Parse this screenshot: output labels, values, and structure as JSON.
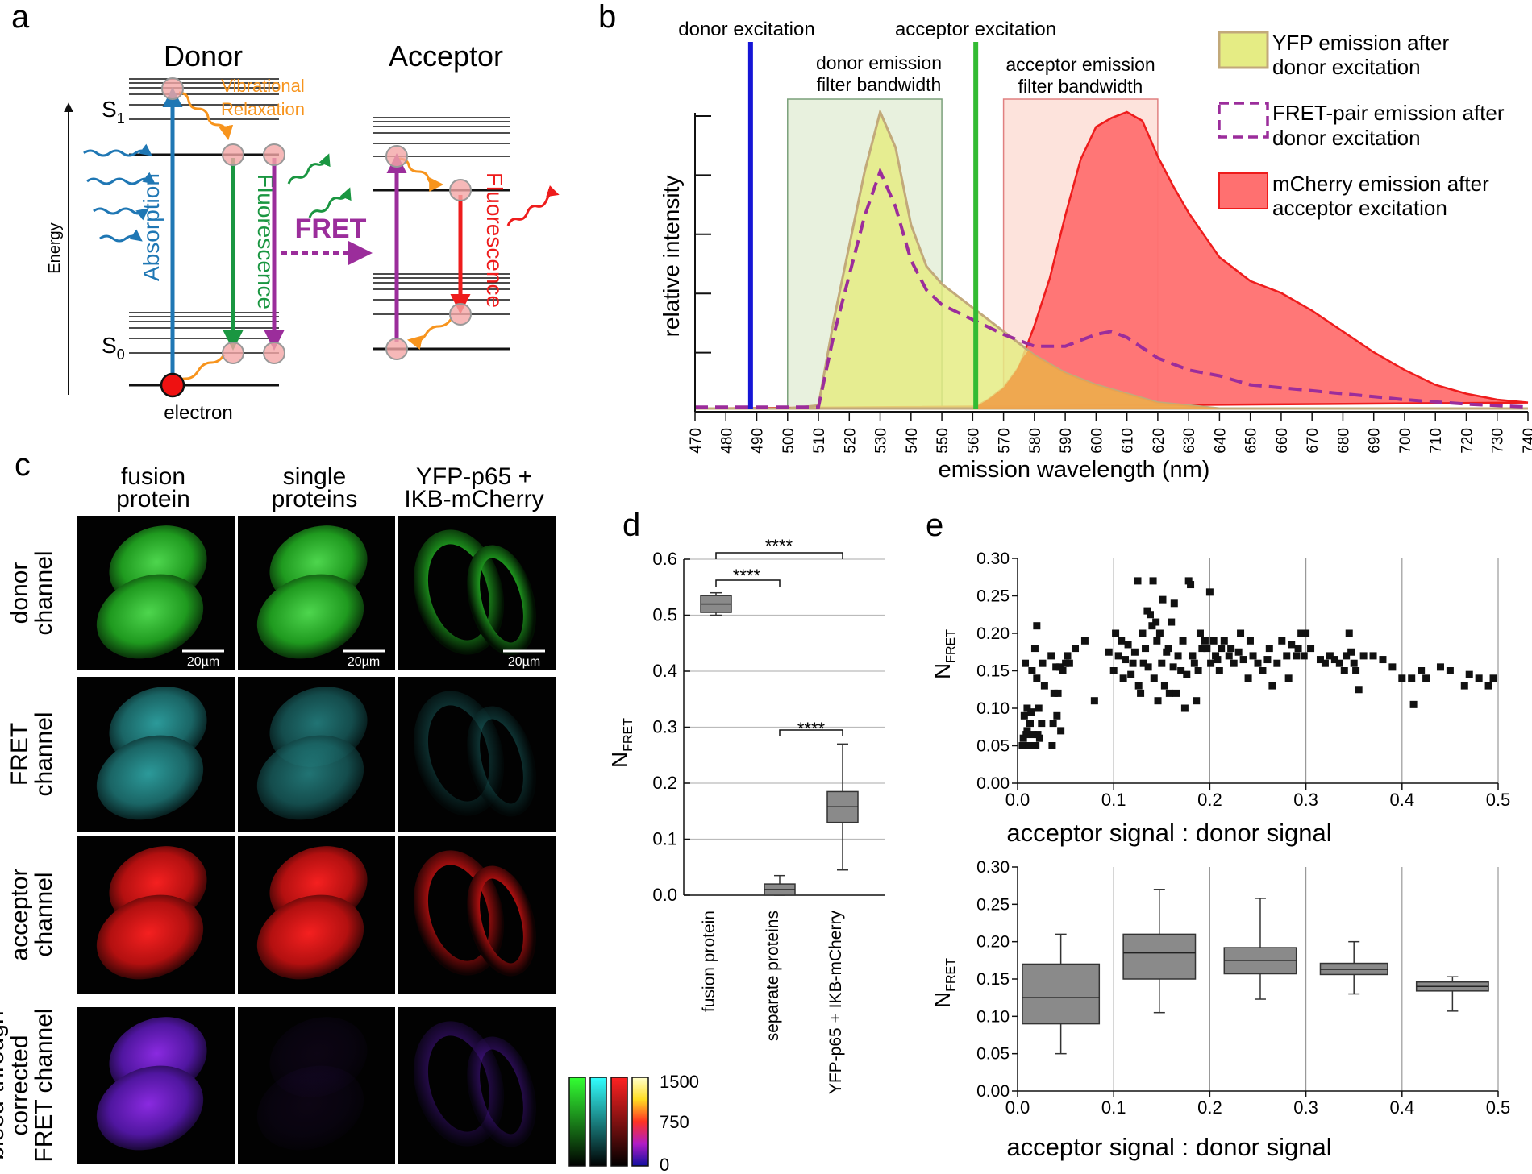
{
  "panel_letters": {
    "a": "a",
    "b": "b",
    "c": "c",
    "d": "d",
    "e": "e"
  },
  "colors": {
    "absorption": "#1f77b4",
    "fluorescence_donor": "#1a9641",
    "fret": "#9b2d9b",
    "fluorescence_acceptor": "#ee1c1c",
    "vibrational": "#f7941d",
    "yfp_fill": "#e5ec84",
    "yfp_line": "#c2a97a",
    "mcherry_fill": "#ff7070",
    "mcherry_line": "#ee1c1c",
    "overlap_fill": "#f0a24a",
    "donor_exc": "#1515d6",
    "acceptor_exc": "#33bb33",
    "donor_box": "#e8f1de",
    "acceptor_box": "#fde3dc",
    "box_gray": "#8a8a8a"
  },
  "panel_a": {
    "donor_title": "Donor",
    "acceptor_title": "Acceptor",
    "energy_label": "Energy",
    "s1_label": "S",
    "s1_sub": "1",
    "s0_label": "S",
    "s0_sub": "0",
    "electron_label": "electron",
    "vibrational_line1": "Vibrational",
    "vibrational_line2": "Relaxation",
    "absorption_label": "Absorption",
    "donor_fluorescence_label": "Fluorescence",
    "acceptor_fluorescence_label": "Fluorescence",
    "fret_label": "FRET"
  },
  "panel_b": {
    "donor_excitation": "donor excitation",
    "acceptor_excitation": "acceptor excitation",
    "donor_filter_line1": "donor emission",
    "donor_filter_line2": "filter bandwidth",
    "acceptor_filter_line1": "acceptor emission",
    "acceptor_filter_line2": "filter bandwidth",
    "legend": [
      {
        "line1": "YFP emission after",
        "line2": "donor excitation"
      },
      {
        "line1": "FRET-pair emission after",
        "line2": "donor excitation"
      },
      {
        "line1": "mCherry emission after",
        "line2": "acceptor excitation"
      }
    ],
    "chart_data": {
      "type": "area",
      "xlabel": "emission wavelength (nm)",
      "ylabel": "relative intensity",
      "xlim": [
        470,
        740
      ],
      "x_ticks": [
        470,
        480,
        490,
        500,
        510,
        520,
        530,
        540,
        550,
        560,
        570,
        580,
        590,
        600,
        610,
        620,
        630,
        640,
        650,
        660,
        670,
        680,
        690,
        700,
        710,
        720,
        730,
        740
      ],
      "donor_excitation_nm": 488,
      "acceptor_excitation_nm": 561,
      "donor_filter_nm": [
        500,
        550
      ],
      "acceptor_filter_nm": [
        570,
        620
      ],
      "series": [
        {
          "name": "YFP emission after donor excitation",
          "points": [
            [
              470,
              0
            ],
            [
              500,
              0
            ],
            [
              510,
              0.01
            ],
            [
              515,
              0.3
            ],
            [
              520,
              0.55
            ],
            [
              525,
              0.8
            ],
            [
              530,
              1.0
            ],
            [
              535,
              0.88
            ],
            [
              540,
              0.62
            ],
            [
              545,
              0.48
            ],
            [
              550,
              0.42
            ],
            [
              555,
              0.38
            ],
            [
              560,
              0.34
            ],
            [
              565,
              0.3
            ],
            [
              570,
              0.26
            ],
            [
              575,
              0.22
            ],
            [
              580,
              0.18
            ],
            [
              590,
              0.12
            ],
            [
              600,
              0.08
            ],
            [
              610,
              0.05
            ],
            [
              620,
              0.02
            ],
            [
              630,
              0.01
            ],
            [
              640,
              0
            ],
            [
              740,
              0
            ]
          ]
        },
        {
          "name": "FRET-pair emission after donor excitation",
          "points": [
            [
              470,
              0.005
            ],
            [
              510,
              0.005
            ],
            [
              515,
              0.25
            ],
            [
              520,
              0.45
            ],
            [
              525,
              0.65
            ],
            [
              530,
              0.8
            ],
            [
              535,
              0.68
            ],
            [
              540,
              0.5
            ],
            [
              545,
              0.4
            ],
            [
              550,
              0.35
            ],
            [
              560,
              0.3
            ],
            [
              570,
              0.25
            ],
            [
              580,
              0.21
            ],
            [
              590,
              0.21
            ],
            [
              600,
              0.25
            ],
            [
              605,
              0.26
            ],
            [
              610,
              0.24
            ],
            [
              620,
              0.17
            ],
            [
              630,
              0.13
            ],
            [
              640,
              0.11
            ],
            [
              650,
              0.08
            ],
            [
              660,
              0.07
            ],
            [
              670,
              0.06
            ],
            [
              680,
              0.05
            ],
            [
              690,
              0.04
            ],
            [
              700,
              0.03
            ],
            [
              720,
              0.015
            ],
            [
              740,
              0.005
            ]
          ]
        },
        {
          "name": "mCherry emission after acceptor excitation",
          "points": [
            [
              470,
              0
            ],
            [
              560,
              0
            ],
            [
              565,
              0.03
            ],
            [
              570,
              0.07
            ],
            [
              575,
              0.14
            ],
            [
              580,
              0.28
            ],
            [
              585,
              0.44
            ],
            [
              590,
              0.65
            ],
            [
              595,
              0.84
            ],
            [
              600,
              0.95
            ],
            [
              605,
              0.98
            ],
            [
              610,
              1.0
            ],
            [
              615,
              0.97
            ],
            [
              620,
              0.85
            ],
            [
              625,
              0.75
            ],
            [
              630,
              0.66
            ],
            [
              640,
              0.51
            ],
            [
              650,
              0.43
            ],
            [
              660,
              0.39
            ],
            [
              670,
              0.33
            ],
            [
              680,
              0.26
            ],
            [
              690,
              0.19
            ],
            [
              700,
              0.13
            ],
            [
              710,
              0.08
            ],
            [
              720,
              0.05
            ],
            [
              730,
              0.03
            ],
            [
              740,
              0.02
            ]
          ]
        }
      ]
    }
  },
  "panel_c": {
    "col_headers": [
      {
        "line1": "fusion",
        "line2": "protein"
      },
      {
        "line1": "single",
        "line2": "proteins"
      },
      {
        "line1": "YFP-p65 +",
        "line2": "IKB-mCherry"
      }
    ],
    "row_labels": [
      {
        "lines": [
          "donor",
          "channel"
        ]
      },
      {
        "lines": [
          "FRET",
          "channel"
        ]
      },
      {
        "lines": [
          "acceptor",
          "channel"
        ]
      },
      {
        "lines": [
          "bleed-through",
          "corrected",
          "FRET channel"
        ]
      }
    ],
    "scale_bar": "20µm",
    "colorbar_ticks": [
      "1500",
      "750",
      "0"
    ]
  },
  "panel_d": {
    "ylabel": "N",
    "ylabel_sub": "FRET",
    "sig1": "****",
    "sig2": "****",
    "sig3": "****",
    "chart_data": {
      "type": "box",
      "ylim": [
        0,
        0.6
      ],
      "y_ticks": [
        "0.0",
        "0.1",
        "0.2",
        "0.3",
        "0.4",
        "0.5",
        "0.6"
      ],
      "categories": [
        "fusion protein",
        "separate proteins",
        "YFP-p65 + IKB-mCherry"
      ],
      "boxes": [
        {
          "whisker_low": 0.5,
          "q1": 0.505,
          "median": 0.52,
          "q3": 0.535,
          "whisker_high": 0.54
        },
        {
          "whisker_low": 0.0,
          "q1": 0.0,
          "median": 0.01,
          "q3": 0.02,
          "whisker_high": 0.035
        },
        {
          "whisker_low": 0.045,
          "q1": 0.13,
          "median": 0.158,
          "q3": 0.185,
          "whisker_high": 0.27
        }
      ]
    }
  },
  "panel_e": {
    "ylabel": "N",
    "ylabel_sub": "FRET",
    "scatter": {
      "type": "scatter",
      "xlabel": "acceptor signal : donor signal",
      "xlim": [
        0,
        0.5
      ],
      "ylim": [
        0,
        0.3
      ],
      "x_ticks": [
        "0.0",
        "0.1",
        "0.2",
        "0.3",
        "0.4",
        "0.5"
      ],
      "y_ticks": [
        "0.00",
        "0.05",
        "0.10",
        "0.15",
        "0.20",
        "0.25",
        "0.30"
      ],
      "points": [
        [
          0.005,
          0.05
        ],
        [
          0.006,
          0.06
        ],
        [
          0.007,
          0.09
        ],
        [
          0.008,
          0.16
        ],
        [
          0.009,
          0.065
        ],
        [
          0.01,
          0.1
        ],
        [
          0.01,
          0.07
        ],
        [
          0.012,
          0.05
        ],
        [
          0.013,
          0.08
        ],
        [
          0.014,
          0.095
        ],
        [
          0.015,
          0.15
        ],
        [
          0.016,
          0.065
        ],
        [
          0.018,
          0.18
        ],
        [
          0.019,
          0.05
        ],
        [
          0.02,
          0.14
        ],
        [
          0.021,
          0.065
        ],
        [
          0.022,
          0.1
        ],
        [
          0.023,
          0.06
        ],
        [
          0.02,
          0.21
        ],
        [
          0.025,
          0.08
        ],
        [
          0.026,
          0.16
        ],
        [
          0.028,
          0.13
        ],
        [
          0.035,
          0.17
        ],
        [
          0.036,
          0.05
        ],
        [
          0.037,
          0.08
        ],
        [
          0.038,
          0.12
        ],
        [
          0.04,
          0.155
        ],
        [
          0.041,
          0.09
        ],
        [
          0.042,
          0.12
        ],
        [
          0.044,
          0.155
        ],
        [
          0.045,
          0.07
        ],
        [
          0.047,
          0.15
        ],
        [
          0.05,
          0.16
        ],
        [
          0.052,
          0.17
        ],
        [
          0.054,
          0.16
        ],
        [
          0.06,
          0.18
        ],
        [
          0.07,
          0.19
        ],
        [
          0.08,
          0.11
        ],
        [
          0.095,
          0.175
        ],
        [
          0.1,
          0.15
        ],
        [
          0.102,
          0.2
        ],
        [
          0.105,
          0.17
        ],
        [
          0.108,
          0.19
        ],
        [
          0.11,
          0.14
        ],
        [
          0.112,
          0.165
        ],
        [
          0.115,
          0.185
        ],
        [
          0.118,
          0.145
        ],
        [
          0.12,
          0.16
        ],
        [
          0.122,
          0.175
        ],
        [
          0.125,
          0.27
        ],
        [
          0.126,
          0.13
        ],
        [
          0.128,
          0.12
        ],
        [
          0.13,
          0.2
        ],
        [
          0.131,
          0.16
        ],
        [
          0.133,
          0.18
        ],
        [
          0.135,
          0.23
        ],
        [
          0.136,
          0.155
        ],
        [
          0.138,
          0.225
        ],
        [
          0.14,
          0.21
        ],
        [
          0.141,
          0.27
        ],
        [
          0.142,
          0.14
        ],
        [
          0.144,
          0.215
        ],
        [
          0.145,
          0.19
        ],
        [
          0.146,
          0.11
        ],
        [
          0.148,
          0.2
        ],
        [
          0.15,
          0.16
        ],
        [
          0.151,
          0.245
        ],
        [
          0.153,
          0.13
        ],
        [
          0.155,
          0.175
        ],
        [
          0.157,
          0.18
        ],
        [
          0.158,
          0.12
        ],
        [
          0.16,
          0.215
        ],
        [
          0.162,
          0.155
        ],
        [
          0.163,
          0.24
        ],
        [
          0.165,
          0.12
        ],
        [
          0.167,
          0.17
        ],
        [
          0.17,
          0.15
        ],
        [
          0.172,
          0.19
        ],
        [
          0.174,
          0.1
        ],
        [
          0.176,
          0.145
        ],
        [
          0.178,
          0.27
        ],
        [
          0.18,
          0.265
        ],
        [
          0.182,
          0.17
        ],
        [
          0.184,
          0.16
        ],
        [
          0.186,
          0.11
        ],
        [
          0.188,
          0.15
        ],
        [
          0.19,
          0.2
        ],
        [
          0.192,
          0.18
        ],
        [
          0.195,
          0.19
        ],
        [
          0.197,
          0.18
        ],
        [
          0.2,
          0.255
        ],
        [
          0.201,
          0.16
        ],
        [
          0.204,
          0.19
        ],
        [
          0.206,
          0.17
        ],
        [
          0.208,
          0.165
        ],
        [
          0.21,
          0.15
        ],
        [
          0.212,
          0.18
        ],
        [
          0.215,
          0.19
        ],
        [
          0.22,
          0.17
        ],
        [
          0.222,
          0.18
        ],
        [
          0.225,
          0.16
        ],
        [
          0.23,
          0.175
        ],
        [
          0.232,
          0.2
        ],
        [
          0.235,
          0.165
        ],
        [
          0.24,
          0.14
        ],
        [
          0.242,
          0.19
        ],
        [
          0.245,
          0.17
        ],
        [
          0.25,
          0.16
        ],
        [
          0.255,
          0.15
        ],
        [
          0.26,
          0.165
        ],
        [
          0.262,
          0.18
        ],
        [
          0.265,
          0.13
        ],
        [
          0.27,
          0.16
        ],
        [
          0.275,
          0.19
        ],
        [
          0.28,
          0.17
        ],
        [
          0.282,
          0.14
        ],
        [
          0.285,
          0.185
        ],
        [
          0.29,
          0.17
        ],
        [
          0.292,
          0.18
        ],
        [
          0.295,
          0.2
        ],
        [
          0.298,
          0.17
        ],
        [
          0.3,
          0.2
        ],
        [
          0.305,
          0.18
        ],
        [
          0.315,
          0.165
        ],
        [
          0.32,
          0.16
        ],
        [
          0.325,
          0.17
        ],
        [
          0.33,
          0.165
        ],
        [
          0.335,
          0.16
        ],
        [
          0.34,
          0.15
        ],
        [
          0.342,
          0.17
        ],
        [
          0.345,
          0.2
        ],
        [
          0.347,
          0.175
        ],
        [
          0.35,
          0.16
        ],
        [
          0.352,
          0.15
        ],
        [
          0.355,
          0.125
        ],
        [
          0.36,
          0.17
        ],
        [
          0.37,
          0.17
        ],
        [
          0.38,
          0.165
        ],
        [
          0.39,
          0.155
        ],
        [
          0.4,
          0.14
        ],
        [
          0.41,
          0.14
        ],
        [
          0.412,
          0.105
        ],
        [
          0.42,
          0.15
        ],
        [
          0.425,
          0.14
        ],
        [
          0.44,
          0.155
        ],
        [
          0.45,
          0.15
        ],
        [
          0.465,
          0.13
        ],
        [
          0.47,
          0.145
        ],
        [
          0.48,
          0.14
        ],
        [
          0.49,
          0.13
        ],
        [
          0.495,
          0.14
        ]
      ]
    },
    "box": {
      "type": "box",
      "xlabel": "acceptor signal : donor signal",
      "xlim": [
        0,
        0.5
      ],
      "ylim": [
        0,
        0.3
      ],
      "x_ticks": [
        "0.0",
        "0.1",
        "0.2",
        "0.3",
        "0.4",
        "0.5"
      ],
      "y_ticks": [
        "0.00",
        "0.05",
        "0.10",
        "0.15",
        "0.20",
        "0.25",
        "0.30"
      ],
      "boxes": [
        {
          "x_low": 0.005,
          "x_high": 0.085,
          "whisker_low": 0.05,
          "q1": 0.09,
          "median": 0.125,
          "q3": 0.17,
          "whisker_high": 0.21
        },
        {
          "x_low": 0.11,
          "x_high": 0.185,
          "whisker_low": 0.105,
          "q1": 0.15,
          "median": 0.185,
          "q3": 0.21,
          "whisker_high": 0.27
        },
        {
          "x_low": 0.215,
          "x_high": 0.29,
          "whisker_low": 0.123,
          "q1": 0.157,
          "median": 0.175,
          "q3": 0.192,
          "whisker_high": 0.258
        },
        {
          "x_low": 0.315,
          "x_high": 0.385,
          "whisker_low": 0.13,
          "q1": 0.156,
          "median": 0.163,
          "q3": 0.171,
          "whisker_high": 0.2
        },
        {
          "x_low": 0.415,
          "x_high": 0.49,
          "whisker_low": 0.107,
          "q1": 0.134,
          "median": 0.14,
          "q3": 0.146,
          "whisker_high": 0.153
        }
      ]
    }
  }
}
